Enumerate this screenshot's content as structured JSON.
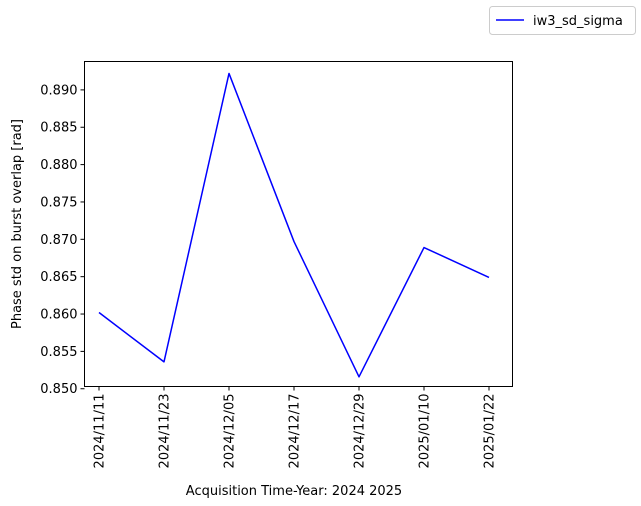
{
  "chart_data": {
    "type": "line",
    "title": "",
    "xlabel": "Acquisition Time-Year: 2024 2025",
    "ylabel": "Phase std on burst overlap [rad]",
    "x": [
      "2024/11/11",
      "2024/11/23",
      "2024/12/05",
      "2024/12/17",
      "2024/12/29",
      "2025/01/10",
      "2025/01/22"
    ],
    "xticks": [
      "2024/11/11",
      "2024/11/23",
      "2024/12/05",
      "2024/12/17",
      "2024/12/29",
      "2025/01/10",
      "2025/01/22"
    ],
    "series": [
      {
        "name": "iw3_sd_sigma",
        "color": "#0000ff",
        "values": [
          0.8602,
          0.8536,
          0.8922,
          0.8697,
          0.8516,
          0.8689,
          0.8649
        ]
      }
    ],
    "ylim": [
      0.8503,
      0.8938
    ],
    "yticks": [
      "0.850",
      "0.855",
      "0.860",
      "0.865",
      "0.870",
      "0.875",
      "0.880",
      "0.885",
      "0.890"
    ],
    "grid": false,
    "legend": "top-right, outside plot"
  }
}
